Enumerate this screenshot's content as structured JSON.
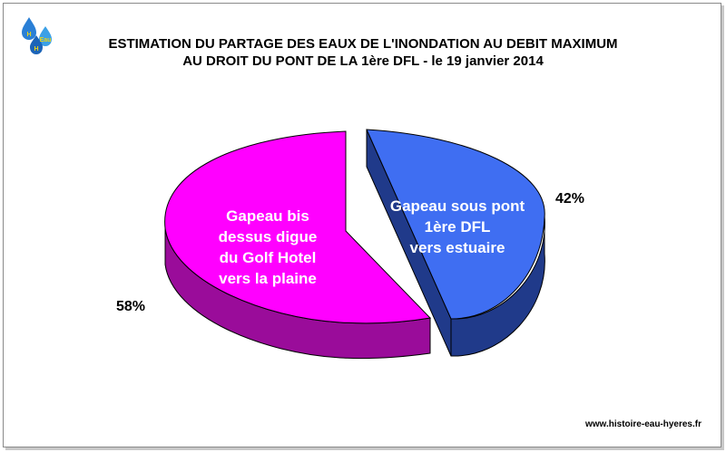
{
  "chart_data": {
    "type": "pie",
    "style": "3d-exploded",
    "title": "ESTIMATION DU PARTAGE DES EAUX DE L'INONDATION AU DEBIT MAXIMUM",
    "subtitle": "AU DROIT DU PONT DE LA 1ère DFL - le 19 janvier 2014",
    "slices": [
      {
        "label_lines": [
          "Gapeau sous pont",
          "1ère DFL",
          "vers estuaire"
        ],
        "value": 42,
        "percent_label": "42%",
        "color": "#3F6EF2",
        "side_color": "#203A8A"
      },
      {
        "label_lines": [
          "Gapeau bis",
          "dessus digue",
          "du Golf Hotel",
          "vers la plaine"
        ],
        "value": 58,
        "percent_label": "58%",
        "color": "#FF00FF",
        "side_color": "#9A0C9A"
      }
    ]
  },
  "footer": {
    "website": "www.histoire-eau-hyeres.fr"
  },
  "logo": {
    "icon": "water-drops-logo",
    "text": "Eau"
  }
}
